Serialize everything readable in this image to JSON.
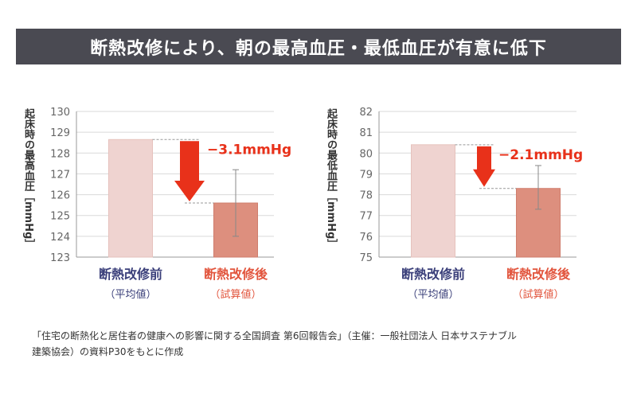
{
  "title": "断熱改修により、朝の最高血圧・最低血圧が有意に低下",
  "chart_data": [
    {
      "type": "bar",
      "ylabel": "起床時の最高血圧［mmHg］",
      "ylim": [
        123,
        130
      ],
      "yticks": [
        "123",
        "124",
        "125",
        "126",
        "127",
        "128",
        "129",
        "130"
      ],
      "categories": [
        "断熱改修前",
        "断熱改修後"
      ],
      "subcategories": [
        "（平均値）",
        "（試算値）"
      ],
      "values": [
        128.65,
        125.6
      ],
      "error_bar": {
        "category_index": 1,
        "low": 124.0,
        "high": 127.2
      },
      "annotation": "−3.1mmHg",
      "colors": [
        "#efd3d0",
        "#dd8f7e"
      ],
      "category_colors": [
        "#3a3f7a",
        "#e2553d"
      ]
    },
    {
      "type": "bar",
      "ylabel": "起床時の最低血圧［mmHg］",
      "ylim": [
        75,
        82
      ],
      "yticks": [
        "75",
        "76",
        "77",
        "78",
        "79",
        "80",
        "81",
        "82"
      ],
      "categories": [
        "断熱改修前",
        "断熱改修後"
      ],
      "subcategories": [
        "（平均値）",
        "（試算値）"
      ],
      "values": [
        80.4,
        78.3
      ],
      "error_bar": {
        "category_index": 1,
        "low": 77.3,
        "high": 79.4
      },
      "annotation": "−2.1mmHg",
      "colors": [
        "#efd3d0",
        "#dd8f7e"
      ],
      "category_colors": [
        "#3a3f7a",
        "#e2553d"
      ]
    }
  ],
  "footnote": {
    "line1": "「住宅の断熱化と居住者の健康への影響に関する全国調査 第6回報告会」（主催：一般社団法人 日本サステナブル",
    "line2": "建築協会）の資料P30をもとに作成"
  }
}
